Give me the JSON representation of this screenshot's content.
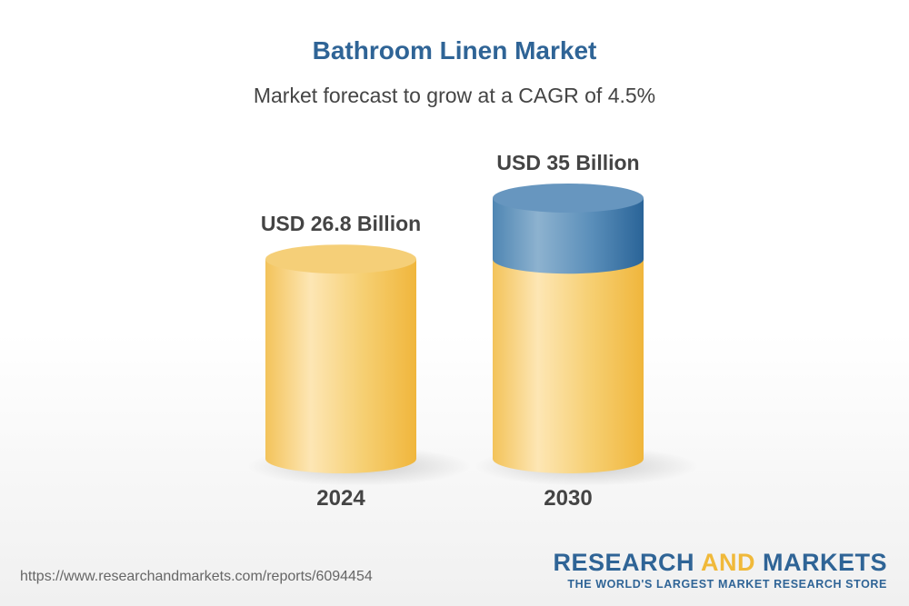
{
  "title": "Bathroom Linen Market",
  "subtitle": "Market forecast to grow at a CAGR of 4.5%",
  "chart_data": {
    "type": "bar",
    "style": "3d-cylinder",
    "categories": [
      "2024",
      "2030"
    ],
    "values": [
      26.8,
      35
    ],
    "data_labels": [
      "USD 26.8 Billion",
      "USD 35 Billion"
    ],
    "unit": "USD Billion",
    "colors": {
      "base": "#f3c14f",
      "growth": "#2f6496"
    }
  },
  "footer": {
    "url": "https://www.researchandmarkets.com/reports/6094454",
    "logo_part1": "RESEARCH ",
    "logo_part2": "AND",
    "logo_part3": " MARKETS",
    "tagline": "THE WORLD'S LARGEST MARKET RESEARCH STORE"
  }
}
